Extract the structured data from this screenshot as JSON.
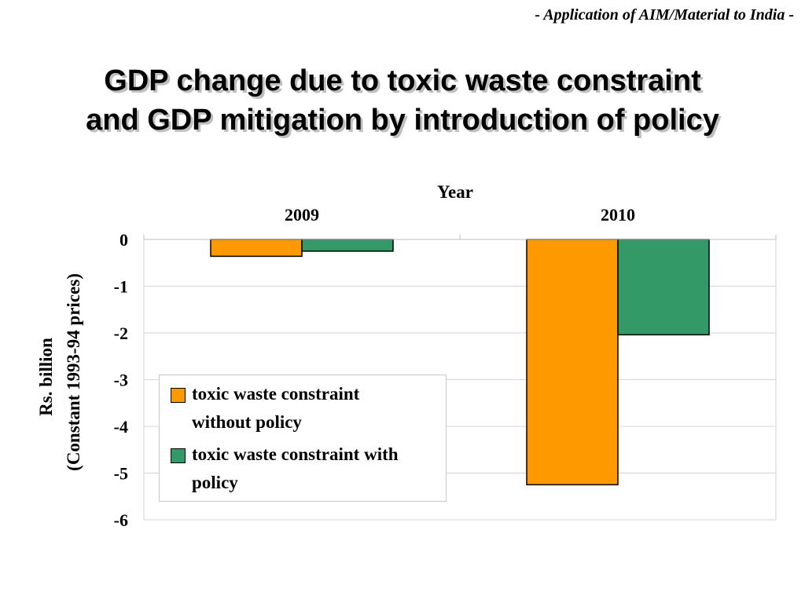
{
  "header_note": "- Application of AIM/Material to India -",
  "title_lines": [
    "GDP change due to toxic waste constraint",
    "and GDP mitigation by introduction of policy"
  ],
  "chart_data": {
    "type": "bar",
    "title": "GDP change due to toxic waste constraint and GDP mitigation by introduction of policy",
    "xlabel": "Year",
    "ylabel": "Rs. billion (Constant 1993-94 prices)",
    "ylabel_lines": [
      "Rs. billion",
      "(Constant 1993-94 prices)"
    ],
    "categories": [
      "2009",
      "2010"
    ],
    "ylim": [
      -6,
      0
    ],
    "yticks": [
      0,
      -1,
      -2,
      -3,
      -4,
      -5,
      -6
    ],
    "x_axis_position": "top",
    "grid": true,
    "legend_position": "bottom-left inside plot",
    "series": [
      {
        "name": "toxic waste constraint without policy",
        "legend_lines": [
          "toxic waste constraint",
          "without policy"
        ],
        "color": "#FF9900",
        "values": [
          -0.36,
          -5.25
        ]
      },
      {
        "name": "toxic waste constraint with policy",
        "legend_lines": [
          "toxic waste constraint with",
          "policy"
        ],
        "color": "#339966",
        "values": [
          -0.25,
          -2.04
        ]
      }
    ]
  }
}
